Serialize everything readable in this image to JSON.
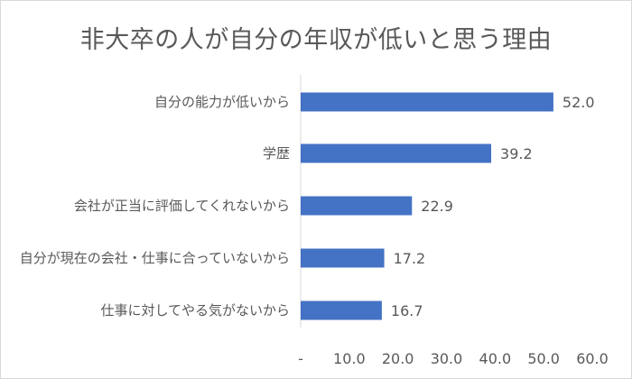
{
  "chart_data": {
    "type": "bar",
    "orientation": "horizontal",
    "title": "非大卒の人が自分の年収が低いと思う理由",
    "categories": [
      "自分の能力が低いから",
      "学歴",
      "会社が正当に評価してくれないから",
      "自分が現在の会社・仕事に合っていないから",
      "仕事に対してやる気がないから"
    ],
    "values": [
      52.0,
      39.2,
      22.9,
      17.2,
      16.7
    ],
    "value_labels": [
      "52.0",
      "39.2",
      "22.9",
      "17.2",
      "16.7"
    ],
    "xlim": [
      0,
      60
    ],
    "x_tick_labels": [
      "-",
      "10.0",
      "20.0",
      "30.0",
      "40.0",
      "50.0",
      "60.0"
    ],
    "grid": false,
    "bar_color": "#4472c4"
  }
}
